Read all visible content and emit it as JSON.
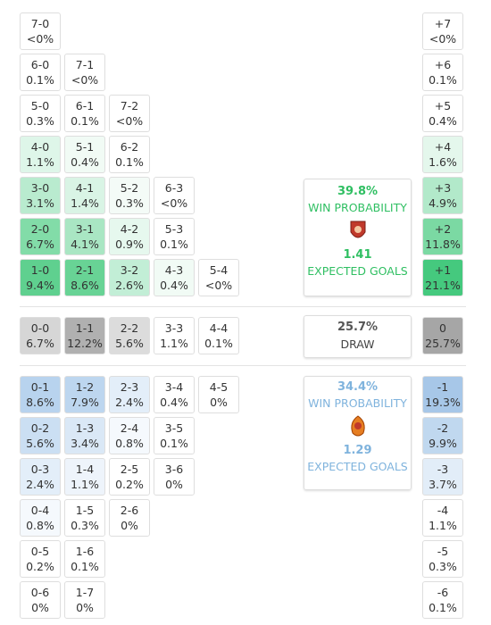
{
  "home_grid": [
    [
      {
        "score": "7-0",
        "prob": "<0%",
        "color": "#ffffff"
      }
    ],
    [
      {
        "score": "6-0",
        "prob": "0.1%",
        "color": "#ffffff"
      },
      {
        "score": "7-1",
        "prob": "<0%",
        "color": "#ffffff"
      }
    ],
    [
      {
        "score": "5-0",
        "prob": "0.3%",
        "color": "#ffffff"
      },
      {
        "score": "6-1",
        "prob": "0.1%",
        "color": "#ffffff"
      },
      {
        "score": "7-2",
        "prob": "<0%",
        "color": "#ffffff"
      }
    ],
    [
      {
        "score": "4-0",
        "prob": "1.1%",
        "color": "#def6e9"
      },
      {
        "score": "5-1",
        "prob": "0.4%",
        "color": "#f1fbf5"
      },
      {
        "score": "6-2",
        "prob": "0.1%",
        "color": "#ffffff"
      }
    ],
    [
      {
        "score": "3-0",
        "prob": "3.1%",
        "color": "#b9ebcf"
      },
      {
        "score": "4-1",
        "prob": "1.4%",
        "color": "#d9f4e5"
      },
      {
        "score": "5-2",
        "prob": "0.3%",
        "color": "#f4fbf7"
      },
      {
        "score": "6-3",
        "prob": "<0%",
        "color": "#ffffff"
      }
    ],
    [
      {
        "score": "2-0",
        "prob": "6.7%",
        "color": "#82dca8"
      },
      {
        "score": "3-1",
        "prob": "4.1%",
        "color": "#a9e6c3"
      },
      {
        "score": "4-2",
        "prob": "0.9%",
        "color": "#e6f8ee"
      },
      {
        "score": "5-3",
        "prob": "0.1%",
        "color": "#ffffff"
      }
    ],
    [
      {
        "score": "1-0",
        "prob": "9.4%",
        "color": "#5fd08f"
      },
      {
        "score": "2-1",
        "prob": "8.6%",
        "color": "#68d395"
      },
      {
        "score": "3-2",
        "prob": "2.6%",
        "color": "#c2eed6"
      },
      {
        "score": "4-3",
        "prob": "0.4%",
        "color": "#f1fbf5"
      },
      {
        "score": "5-4",
        "prob": "<0%",
        "color": "#ffffff"
      }
    ]
  ],
  "draw_row": [
    {
      "score": "0-0",
      "prob": "6.7%",
      "color": "#d6d6d6"
    },
    {
      "score": "1-1",
      "prob": "12.2%",
      "color": "#b0b0b0"
    },
    {
      "score": "2-2",
      "prob": "5.6%",
      "color": "#dcdcdc"
    },
    {
      "score": "3-3",
      "prob": "1.1%",
      "color": "#ffffff"
    },
    {
      "score": "4-4",
      "prob": "0.1%",
      "color": "#ffffff"
    }
  ],
  "away_grid": [
    [
      {
        "score": "0-1",
        "prob": "8.6%",
        "color": "#b8d3ee"
      },
      {
        "score": "1-2",
        "prob": "7.9%",
        "color": "#bdd6ef"
      },
      {
        "score": "2-3",
        "prob": "2.4%",
        "color": "#e3eef9"
      },
      {
        "score": "3-4",
        "prob": "0.4%",
        "color": "#ffffff"
      },
      {
        "score": "4-5",
        "prob": "0%",
        "color": "#ffffff"
      }
    ],
    [
      {
        "score": "0-2",
        "prob": "5.6%",
        "color": "#cbdff3"
      },
      {
        "score": "1-3",
        "prob": "3.4%",
        "color": "#dae8f6"
      },
      {
        "score": "2-4",
        "prob": "0.8%",
        "color": "#f5f9fd"
      },
      {
        "score": "3-5",
        "prob": "0.1%",
        "color": "#ffffff"
      }
    ],
    [
      {
        "score": "0-3",
        "prob": "2.4%",
        "color": "#e3eef9"
      },
      {
        "score": "1-4",
        "prob": "1.1%",
        "color": "#eef4fb"
      },
      {
        "score": "2-5",
        "prob": "0.2%",
        "color": "#ffffff"
      },
      {
        "score": "3-6",
        "prob": "0%",
        "color": "#ffffff"
      }
    ],
    [
      {
        "score": "0-4",
        "prob": "0.8%",
        "color": "#f5f9fd"
      },
      {
        "score": "1-5",
        "prob": "0.3%",
        "color": "#ffffff"
      },
      {
        "score": "2-6",
        "prob": "0%",
        "color": "#ffffff"
      }
    ],
    [
      {
        "score": "0-5",
        "prob": "0.2%",
        "color": "#ffffff"
      },
      {
        "score": "1-6",
        "prob": "0.1%",
        "color": "#ffffff"
      }
    ],
    [
      {
        "score": "0-6",
        "prob": "0%",
        "color": "#ffffff"
      },
      {
        "score": "1-7",
        "prob": "0%",
        "color": "#ffffff"
      }
    ]
  ],
  "margins_home": [
    {
      "score": "+7",
      "prob": "<0%",
      "color": "#ffffff"
    },
    {
      "score": "+6",
      "prob": "0.1%",
      "color": "#ffffff"
    },
    {
      "score": "+5",
      "prob": "0.4%",
      "color": "#ffffff"
    },
    {
      "score": "+4",
      "prob": "1.6%",
      "color": "#e4f7ec"
    },
    {
      "score": "+3",
      "prob": "4.9%",
      "color": "#b2e9ca"
    },
    {
      "score": "+2",
      "prob": "11.8%",
      "color": "#7bd9a3"
    },
    {
      "score": "+1",
      "prob": "21.1%",
      "color": "#45c97e"
    }
  ],
  "margin_draw": {
    "score": "0",
    "prob": "25.7%",
    "color": "#a6a6a6"
  },
  "margins_away": [
    {
      "score": "-1",
      "prob": "19.3%",
      "color": "#a7c7e8"
    },
    {
      "score": "-2",
      "prob": "9.9%",
      "color": "#c0d8ef"
    },
    {
      "score": "-3",
      "prob": "3.7%",
      "color": "#e2edf8"
    },
    {
      "score": "-4",
      "prob": "1.1%",
      "color": "#ffffff"
    },
    {
      "score": "-5",
      "prob": "0.3%",
      "color": "#ffffff"
    },
    {
      "score": "-6",
      "prob": "0.1%",
      "color": "#ffffff"
    }
  ],
  "home_summary": {
    "win_prob": "39.8%",
    "win_label": "WIN PROBABILITY",
    "xg": "1.41",
    "xg_label": "EXPECTED GOALS",
    "color": "#2fbf62"
  },
  "draw_summary": {
    "prob": "25.7%",
    "label": "DRAW",
    "color": "#555555"
  },
  "away_summary": {
    "win_prob": "34.4%",
    "win_label": "WIN PROBABILITY",
    "xg": "1.29",
    "xg_label": "EXPECTED GOALS",
    "color": "#7fb3dd"
  }
}
